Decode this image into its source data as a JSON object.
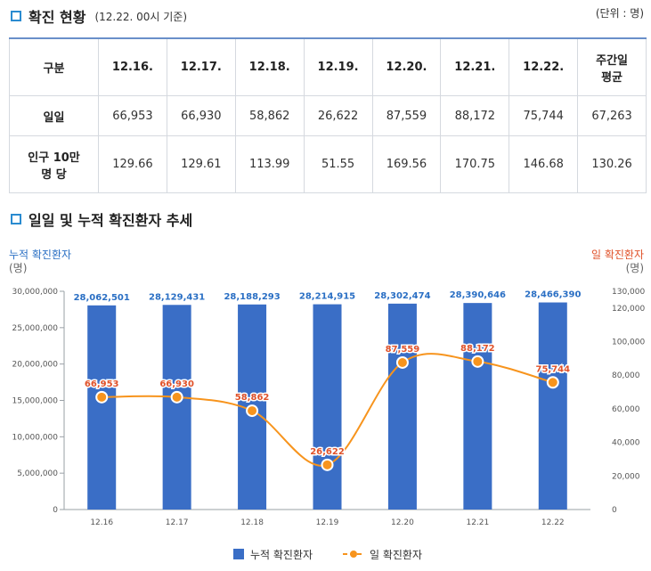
{
  "section1": {
    "title": "확진 현황",
    "subtitle": "(12.22. 00시 기준)",
    "unit": "(단위 : 명)"
  },
  "table": {
    "corner": "구분",
    "headers": [
      "12.16.",
      "12.17.",
      "12.18.",
      "12.19.",
      "12.20.",
      "12.21.",
      "12.22."
    ],
    "avg_header_line1": "주간일",
    "avg_header_line2": "평균",
    "rows": [
      {
        "label_line1": "일일",
        "label_line2": "",
        "cells": [
          "66,953",
          "66,930",
          "58,862",
          "26,622",
          "87,559",
          "88,172",
          "75,744",
          "67,263"
        ]
      },
      {
        "label_line1": "인구 10만",
        "label_line2": "명 당",
        "cells": [
          "129.66",
          "129.61",
          "113.99",
          "51.55",
          "169.56",
          "170.75",
          "146.68",
          "130.26"
        ]
      }
    ]
  },
  "section2": {
    "title": "일일 및 누적 확진환자 추세"
  },
  "colors": {
    "bar": "#3a6ec6",
    "line": "#f7941d",
    "bar_label": "#2a6fc4",
    "line_label": "#e0522a",
    "accent": "#2a8bd0"
  },
  "chart_data": {
    "type": "bar",
    "categories": [
      "12.16",
      "12.17",
      "12.18",
      "12.19",
      "12.20",
      "12.21",
      "12.22"
    ],
    "series": [
      {
        "name": "누적 확진환자",
        "type": "bar",
        "axis": "left",
        "values": [
          28062501,
          28129431,
          28188293,
          28214915,
          28302474,
          28390646,
          28466390
        ],
        "labels": [
          "28,062,501",
          "28,129,431",
          "28,188,293",
          "28,214,915",
          "28,302,474",
          "28,390,646",
          "28,466,390"
        ]
      },
      {
        "name": "일 확진환자",
        "type": "line",
        "axis": "right",
        "values": [
          66953,
          66930,
          58862,
          26622,
          87559,
          88172,
          75744
        ],
        "labels": [
          "66,953",
          "66,930",
          "58,862",
          "26,622",
          "87,559",
          "88,172",
          "75,744"
        ]
      }
    ],
    "left_axis": {
      "title": "누적 확진환자",
      "unit": "(명)",
      "range": [
        0,
        30000000
      ],
      "ticks": [
        0,
        5000000,
        10000000,
        15000000,
        20000000,
        25000000,
        30000000
      ],
      "tick_labels": [
        "0",
        "5,000,000",
        "10,000,000",
        "15,000,000",
        "20,000,000",
        "25,000,000",
        "30,000,000"
      ]
    },
    "right_axis": {
      "title": "일 확진환자",
      "unit": "(명)",
      "range": [
        0,
        130000
      ],
      "ticks": [
        0,
        20000,
        40000,
        60000,
        80000,
        100000,
        120000,
        130000
      ],
      "tick_labels": [
        "0",
        "20,000",
        "40,000",
        "60,000",
        "80,000",
        "100,000",
        "120,000",
        "130,000"
      ]
    },
    "legend": {
      "position": "bottom",
      "items": [
        "누적 확진환자",
        "일 확진환자"
      ]
    }
  }
}
